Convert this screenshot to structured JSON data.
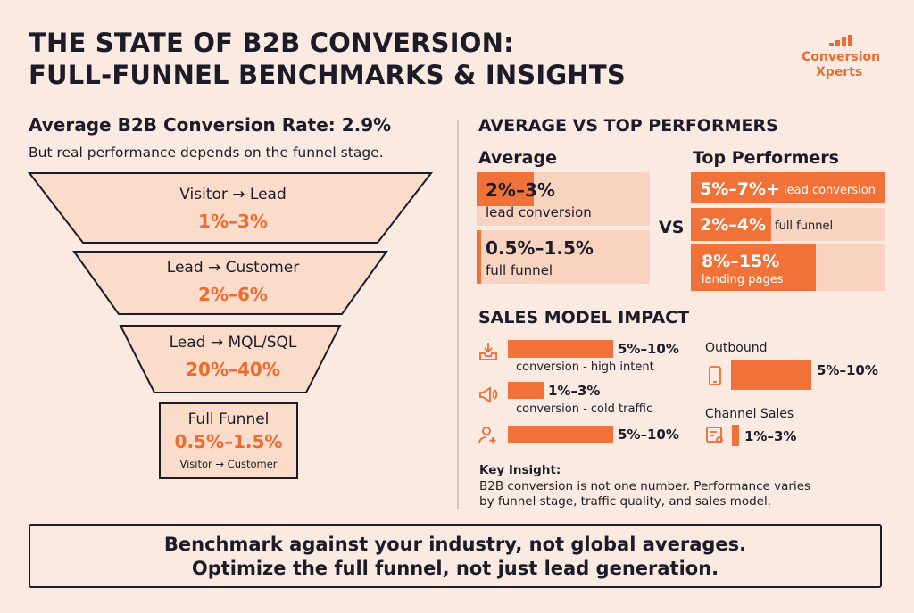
{
  "title": [
    "THE STATE OF B2B CONVERSION:",
    "FULL-FUNNEL BENCHMARKS & INSIGHTS"
  ],
  "logo": {
    "line1": "Conversion",
    "line2": "Xperts",
    "bar_heights": [
      4,
      7,
      10,
      13
    ]
  },
  "left": {
    "headline": "Average B2B Conversion Rate: 2.9%",
    "subhead": "But real performance depends on the funnel stage.",
    "stages": [
      {
        "label": "Visitor → Lead",
        "value": "1%–3%"
      },
      {
        "label": "Lead → Customer",
        "value": "2%–6%"
      },
      {
        "label": "Lead → MQL/SQL",
        "value": "20%–40%"
      }
    ],
    "full_funnel": {
      "label": "Full Funnel",
      "value": "0.5%–1.5%",
      "note": "Visitor → Customer"
    }
  },
  "compare": {
    "heading": "AVERAGE VS TOP PERFORMERS",
    "average_heading": "Average",
    "top_heading": "Top Performers",
    "vs": "VS",
    "average": [
      {
        "value": "2%–3%",
        "label": "lead conversion"
      },
      {
        "value": "0.5%–1.5%",
        "label": "full funnel"
      }
    ],
    "top": [
      {
        "value": "5%–7%+",
        "label": "lead conversion"
      },
      {
        "value": "2%–4%",
        "label": "full funnel"
      },
      {
        "value": "8%–15%",
        "label": "landing pages"
      }
    ]
  },
  "sales": {
    "heading": "SALES MODEL IMPACT",
    "items": [
      {
        "value": "5%–10%",
        "label": "conversion - high intent",
        "icon": "inbound-download-icon"
      },
      {
        "value": "1%–3%",
        "label": "conversion - cold traffic",
        "icon": "megaphone-icon"
      },
      {
        "value": "5%–10%",
        "label": "",
        "icon": "user-add-icon"
      }
    ],
    "outbound": {
      "label": "Outbound",
      "value": "5%–10%",
      "icon": "phone-icon"
    },
    "channel": {
      "label": "Channel Sales",
      "value": "1%–3%",
      "icon": "partner-icon"
    }
  },
  "insight": {
    "title": "Key Insight:",
    "line1": "B2B conversion is not one number. Performance varies",
    "line2": "by funnel stage, traffic quality, and sales model."
  },
  "footer": {
    "line1": "Benchmark against your industry, not global averages.",
    "line2": "Optimize the full funnel, not just lead generation."
  },
  "colors": {
    "accent": "#ee6a2e",
    "background": "#faeae2",
    "panel": "#f8d3c0",
    "text": "#1c1c28"
  }
}
